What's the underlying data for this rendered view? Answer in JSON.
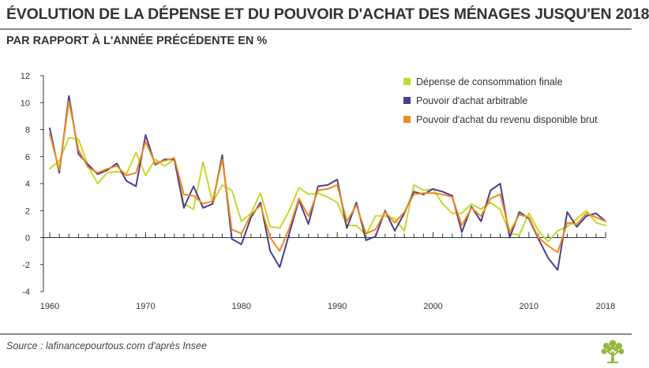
{
  "header": {
    "title": "ÉVOLUTION DE LA DÉPENSE ET DU POUVOIR D'ACHAT DES MÉNAGES JUSQU'EN 2018",
    "subtitle": "PAR RAPPORT À L'ANNÉE PRÉCÉDENTE EN %"
  },
  "footer": {
    "source": "Source : lafinancepourtous.com d'après Insee"
  },
  "colors": {
    "consumption": "#c8d62b",
    "purchasing_power": "#4b3f8c",
    "disposable_income": "#ef8b1e",
    "axis": "#333333",
    "logo": "#95b83d"
  },
  "chart_data": {
    "type": "line",
    "title": "ÉVOLUTION DE LA DÉPENSE ET DU POUVOIR D'ACHAT DES MÉNAGES JUSQU'EN 2018",
    "subtitle": "PAR RAPPORT À L'ANNÉE PRÉCÉDENTE EN %",
    "xlabel": "",
    "ylabel": "",
    "xlim": [
      1960,
      2018
    ],
    "ylim": [
      -4,
      12
    ],
    "x_ticks": [
      "1960",
      "1970",
      "1980",
      "1990",
      "2000",
      "2010",
      "2018"
    ],
    "y_ticks": [
      "12",
      "10",
      "8",
      "6",
      "4",
      "2",
      "0",
      "-2",
      "-4"
    ],
    "legend_position": "top-right",
    "grid": false,
    "x": [
      1960,
      1961,
      1962,
      1963,
      1964,
      1965,
      1966,
      1967,
      1968,
      1969,
      1970,
      1971,
      1972,
      1973,
      1974,
      1975,
      1976,
      1977,
      1978,
      1979,
      1980,
      1981,
      1982,
      1983,
      1984,
      1985,
      1986,
      1987,
      1988,
      1989,
      1990,
      1991,
      1992,
      1993,
      1994,
      1995,
      1996,
      1997,
      1998,
      1999,
      2000,
      2001,
      2002,
      2003,
      2004,
      2005,
      2006,
      2007,
      2008,
      2009,
      2010,
      2011,
      2012,
      2013,
      2014,
      2015,
      2016,
      2017,
      2018
    ],
    "series": [
      {
        "name": "Dépense de consommation finale",
        "color": "#c8d62b",
        "values": [
          5.1,
          5.7,
          7.4,
          7.3,
          5.3,
          4.0,
          4.8,
          4.9,
          4.7,
          6.3,
          4.6,
          5.8,
          5.3,
          5.8,
          2.5,
          2.1,
          5.6,
          2.6,
          3.9,
          3.5,
          1.2,
          1.8,
          3.3,
          0.8,
          0.7,
          2.0,
          3.7,
          3.2,
          3.3,
          3.0,
          2.6,
          0.9,
          0.9,
          0.2,
          1.6,
          1.6,
          1.4,
          0.5,
          3.9,
          3.5,
          3.6,
          2.5,
          1.8,
          1.8,
          2.5,
          2.1,
          2.6,
          2.1,
          0.3,
          0.2,
          1.8,
          0.5,
          -0.3,
          0.5,
          0.8,
          1.4,
          2.0,
          1.1,
          0.9
        ]
      },
      {
        "name": "Pouvoir d'achat arbitrable",
        "color": "#4b3f8c",
        "values": [
          8.1,
          4.8,
          10.5,
          6.2,
          5.4,
          4.7,
          5.0,
          5.5,
          4.2,
          3.8,
          7.6,
          5.4,
          5.8,
          5.8,
          2.2,
          3.8,
          2.2,
          2.5,
          6.1,
          -0.1,
          -0.5,
          1.5,
          2.6,
          -1.0,
          -2.2,
          0.3,
          2.8,
          1.0,
          3.8,
          3.9,
          4.3,
          0.7,
          2.6,
          -0.2,
          0.1,
          2.0,
          0.5,
          1.8,
          3.4,
          3.2,
          3.6,
          3.4,
          3.1,
          0.4,
          2.3,
          1.2,
          3.5,
          4.0,
          0.0,
          1.9,
          1.4,
          -0.1,
          -1.5,
          -2.4,
          1.9,
          0.8,
          1.6,
          1.8,
          1.2
        ]
      },
      {
        "name": "Pouvoir d'achat du revenu disponible brut",
        "color": "#ef8b1e",
        "values": [
          7.7,
          5.0,
          10.1,
          6.5,
          5.2,
          4.8,
          5.1,
          5.3,
          4.6,
          4.8,
          7.1,
          5.5,
          5.7,
          5.9,
          3.2,
          3.1,
          2.5,
          2.7,
          5.8,
          0.6,
          0.3,
          1.7,
          2.4,
          0.0,
          -1.0,
          0.7,
          2.9,
          1.6,
          3.5,
          3.6,
          3.9,
          1.2,
          2.4,
          0.3,
          0.6,
          1.9,
          1.1,
          1.9,
          3.2,
          3.3,
          3.3,
          3.2,
          3.0,
          0.9,
          2.2,
          1.6,
          2.9,
          3.2,
          0.4,
          1.7,
          1.5,
          0.0,
          -0.6,
          -1.1,
          1.1,
          1.0,
          1.8,
          1.5,
          1.2
        ]
      }
    ]
  }
}
